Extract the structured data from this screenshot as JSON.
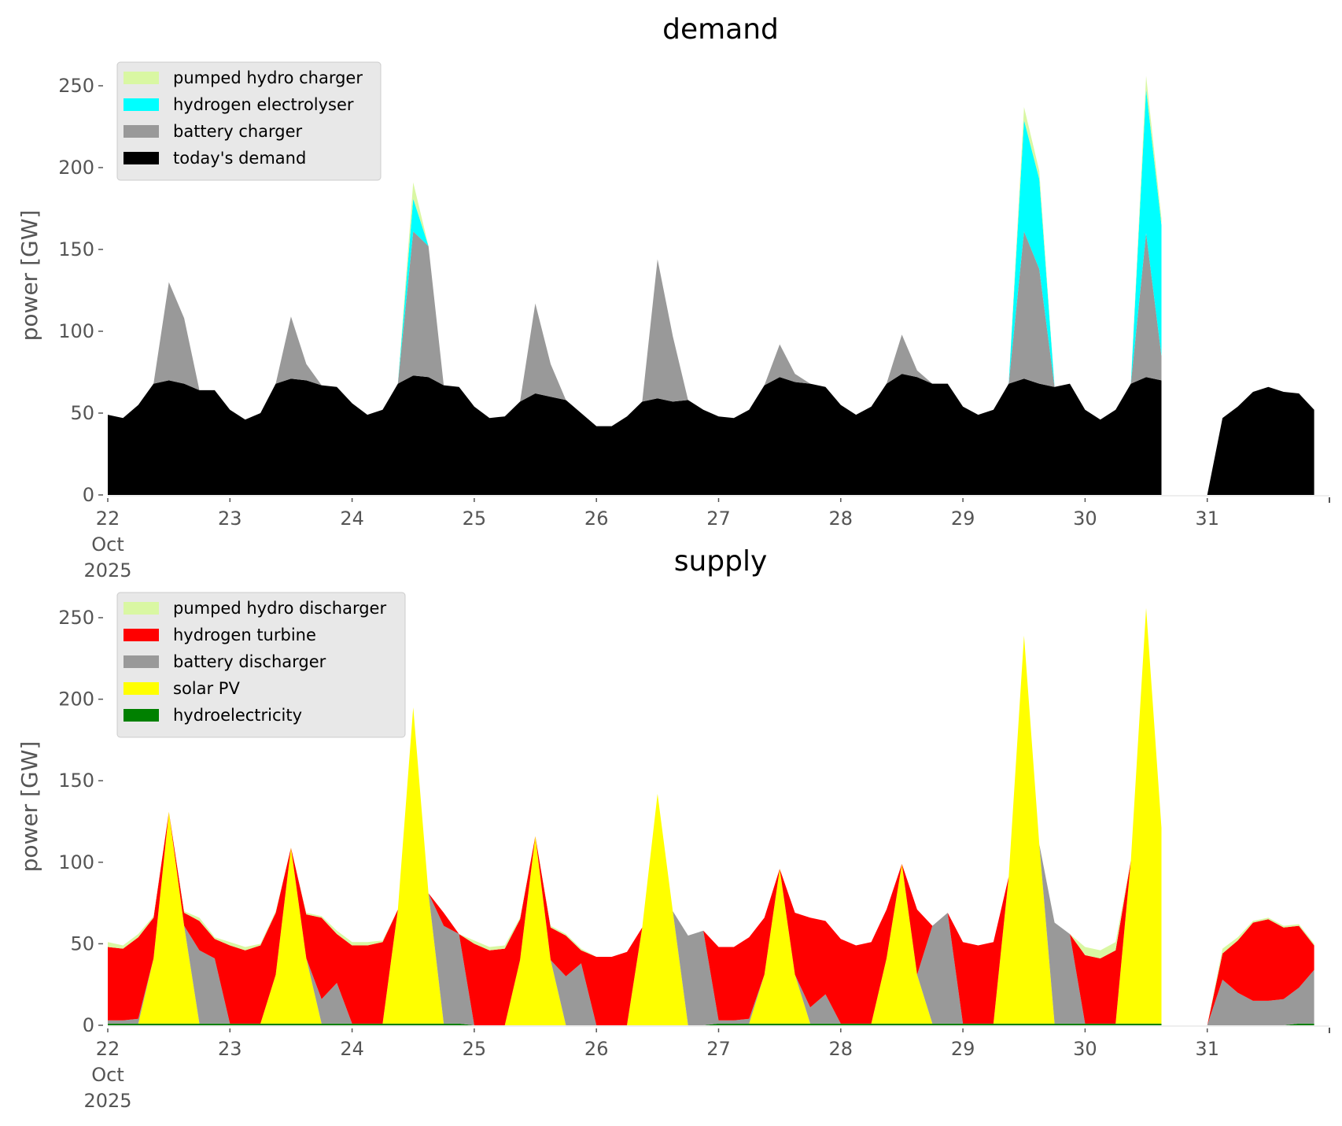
{
  "chart_data": [
    {
      "type": "area",
      "stacked": true,
      "title": "demand",
      "xlabel": "",
      "ylabel": "power [GW]",
      "ylim": [
        0,
        265
      ],
      "yticks": [
        0,
        50,
        100,
        150,
        200,
        250
      ],
      "xlim_days": [
        22,
        32
      ],
      "xticks": [
        {
          "day": 22,
          "label": "22",
          "sub": [
            "Oct",
            "2025"
          ]
        },
        {
          "day": 23,
          "label": "23"
        },
        {
          "day": 24,
          "label": "24"
        },
        {
          "day": 25,
          "label": "25"
        },
        {
          "day": 26,
          "label": "26"
        },
        {
          "day": 27,
          "label": "27"
        },
        {
          "day": 28,
          "label": "28"
        },
        {
          "day": 29,
          "label": "29"
        },
        {
          "day": 30,
          "label": "30"
        },
        {
          "day": 31,
          "label": "31"
        }
      ],
      "grid": false,
      "legend_position": "top-left",
      "sample_step_hours": 3,
      "x_start_day": 22,
      "gaps": [
        [
          26.04,
          26.08
        ],
        [
          26.9,
          26.96
        ],
        [
          30.72,
          30.96
        ]
      ],
      "series": [
        {
          "name": "today's demand",
          "color": "#000000",
          "values": [
            49,
            47,
            55,
            68,
            70,
            68,
            64,
            64,
            52,
            46,
            50,
            68,
            71,
            70,
            67,
            66,
            56,
            49,
            52,
            68,
            73,
            72,
            67,
            66,
            54,
            47,
            48,
            57,
            62,
            60,
            58,
            50,
            42,
            42,
            48,
            57,
            59,
            57,
            58,
            52,
            48,
            47,
            52,
            67,
            72,
            69,
            68,
            66,
            55,
            49,
            54,
            68,
            74,
            72,
            68,
            68,
            54,
            49,
            52,
            68,
            71,
            68,
            66,
            68,
            52,
            46,
            52,
            68,
            72,
            70,
            0,
            0,
            0,
            47,
            54,
            63,
            66,
            63,
            62,
            52
          ]
        },
        {
          "name": "battery charger",
          "color": "#999999",
          "values": [
            0,
            0,
            0,
            0,
            60,
            40,
            0,
            0,
            0,
            0,
            0,
            0,
            38,
            10,
            0,
            0,
            0,
            0,
            0,
            0,
            88,
            80,
            0,
            0,
            0,
            0,
            0,
            0,
            55,
            20,
            0,
            0,
            0,
            0,
            0,
            0,
            85,
            40,
            0,
            0,
            0,
            0,
            0,
            0,
            20,
            5,
            0,
            0,
            0,
            0,
            0,
            0,
            24,
            4,
            0,
            0,
            0,
            0,
            0,
            0,
            90,
            70,
            0,
            0,
            0,
            0,
            0,
            0,
            88,
            15,
            0,
            0,
            0,
            0,
            0,
            0,
            0,
            0,
            0,
            0
          ]
        },
        {
          "name": "hydrogen electrolyser",
          "color": "#00ffff",
          "values": [
            0,
            0,
            0,
            0,
            0,
            0,
            0,
            0,
            0,
            0,
            0,
            0,
            0,
            0,
            0,
            0,
            0,
            0,
            0,
            0,
            20,
            0,
            0,
            0,
            0,
            0,
            0,
            0,
            0,
            0,
            0,
            0,
            0,
            0,
            0,
            0,
            0,
            0,
            0,
            0,
            0,
            0,
            0,
            0,
            0,
            0,
            0,
            0,
            0,
            0,
            0,
            0,
            0,
            0,
            0,
            0,
            0,
            0,
            0,
            0,
            68,
            55,
            0,
            0,
            0,
            0,
            0,
            0,
            88,
            80,
            0,
            0,
            0,
            0,
            0,
            0,
            0,
            0,
            0,
            0
          ]
        },
        {
          "name": "pumped hydro charger",
          "color": "#d9f7a3",
          "values": [
            0,
            0,
            0,
            0,
            0,
            0,
            0,
            0,
            0,
            0,
            0,
            0,
            0,
            0,
            0,
            0,
            0,
            0,
            0,
            0,
            10,
            0,
            0,
            0,
            0,
            0,
            0,
            0,
            0,
            0,
            0,
            0,
            0,
            0,
            0,
            0,
            0,
            0,
            0,
            0,
            0,
            0,
            0,
            0,
            0,
            0,
            0,
            0,
            0,
            0,
            0,
            0,
            0,
            0,
            0,
            0,
            0,
            0,
            0,
            0,
            8,
            5,
            0,
            0,
            0,
            0,
            0,
            0,
            8,
            4,
            0,
            0,
            0,
            0,
            0,
            0,
            0,
            0,
            0,
            0
          ]
        }
      ]
    },
    {
      "type": "area",
      "stacked": true,
      "title": "supply",
      "xlabel": "",
      "ylabel": "power [GW]",
      "ylim": [
        0,
        265
      ],
      "yticks": [
        0,
        50,
        100,
        150,
        200,
        250
      ],
      "xlim_days": [
        22,
        32
      ],
      "xticks": [
        {
          "day": 22,
          "label": "22",
          "sub": [
            "Oct",
            "2025"
          ]
        },
        {
          "day": 23,
          "label": "23"
        },
        {
          "day": 24,
          "label": "24"
        },
        {
          "day": 25,
          "label": "25"
        },
        {
          "day": 26,
          "label": "26"
        },
        {
          "day": 27,
          "label": "27"
        },
        {
          "day": 28,
          "label": "28"
        },
        {
          "day": 29,
          "label": "29"
        },
        {
          "day": 30,
          "label": "30"
        },
        {
          "day": 31,
          "label": "31"
        }
      ],
      "grid": false,
      "legend_position": "top-left",
      "sample_step_hours": 3,
      "x_start_day": 22,
      "gaps": [
        [
          26.04,
          26.08
        ],
        [
          26.9,
          26.96
        ],
        [
          30.72,
          30.96
        ]
      ],
      "series": [
        {
          "name": "hydroelectricity",
          "color": "#008000",
          "values": [
            1,
            1,
            1,
            1,
            1,
            1,
            1,
            1,
            1,
            1,
            1,
            1,
            1,
            1,
            1,
            1,
            1,
            1,
            1,
            1,
            1,
            1,
            1,
            1,
            0,
            0,
            0,
            0,
            0,
            0,
            0,
            0,
            0,
            0,
            0,
            0,
            0,
            0,
            0,
            0,
            1,
            1,
            1,
            1,
            1,
            1,
            1,
            1,
            1,
            1,
            1,
            1,
            1,
            1,
            1,
            1,
            1,
            1,
            1,
            1,
            1,
            1,
            1,
            1,
            1,
            1,
            1,
            1,
            1,
            1,
            0,
            0,
            0,
            0,
            0,
            0,
            0,
            0,
            1,
            1
          ]
        },
        {
          "name": "solar PV",
          "color": "#ffff00",
          "values": [
            0,
            0,
            0,
            40,
            130,
            60,
            0,
            0,
            0,
            0,
            0,
            30,
            108,
            40,
            0,
            0,
            0,
            0,
            0,
            70,
            194,
            80,
            0,
            0,
            0,
            0,
            0,
            40,
            116,
            40,
            0,
            0,
            0,
            0,
            0,
            60,
            142,
            70,
            0,
            0,
            0,
            0,
            0,
            30,
            95,
            30,
            0,
            0,
            0,
            0,
            0,
            40,
            98,
            30,
            0,
            0,
            0,
            0,
            0,
            90,
            238,
            110,
            0,
            0,
            0,
            0,
            0,
            100,
            255,
            120,
            0,
            0,
            0,
            0,
            0,
            0,
            0,
            0,
            0,
            0
          ]
        },
        {
          "name": "battery discharger",
          "color": "#999999",
          "values": [
            2,
            2,
            3,
            0,
            0,
            0,
            45,
            40,
            0,
            0,
            0,
            0,
            0,
            0,
            15,
            25,
            0,
            0,
            0,
            0,
            0,
            0,
            60,
            55,
            0,
            0,
            0,
            0,
            0,
            0,
            30,
            38,
            0,
            0,
            0,
            0,
            0,
            0,
            55,
            58,
            2,
            2,
            3,
            0,
            0,
            0,
            10,
            18,
            0,
            0,
            0,
            0,
            0,
            0,
            60,
            68,
            0,
            0,
            0,
            0,
            0,
            0,
            62,
            55,
            0,
            0,
            0,
            0,
            0,
            0,
            0,
            0,
            0,
            28,
            20,
            15,
            15,
            16,
            22,
            33
          ]
        },
        {
          "name": "hydrogen turbine",
          "color": "#ff0000",
          "values": [
            45,
            44,
            50,
            25,
            0,
            8,
            18,
            12,
            48,
            45,
            48,
            38,
            0,
            27,
            50,
            30,
            48,
            48,
            50,
            0,
            0,
            0,
            8,
            0,
            50,
            46,
            47,
            25,
            0,
            20,
            25,
            8,
            42,
            42,
            45,
            0,
            0,
            0,
            0,
            0,
            45,
            45,
            50,
            35,
            0,
            38,
            55,
            45,
            52,
            48,
            50,
            30,
            0,
            40,
            0,
            0,
            50,
            48,
            50,
            0,
            0,
            0,
            0,
            0,
            42,
            40,
            45,
            0,
            0,
            0,
            0,
            0,
            0,
            16,
            32,
            48,
            50,
            44,
            38,
            15
          ]
        },
        {
          "name": "pumped hydro discharger",
          "color": "#d9f7a3",
          "values": [
            3,
            2,
            2,
            1,
            0,
            1,
            2,
            1,
            2,
            2,
            1,
            1,
            0,
            1,
            1,
            2,
            2,
            2,
            1,
            0,
            0,
            0,
            0,
            0,
            2,
            2,
            2,
            1,
            0,
            1,
            1,
            1,
            0,
            0,
            0,
            0,
            0,
            0,
            0,
            0,
            0,
            0,
            0,
            0,
            0,
            0,
            0,
            0,
            0,
            0,
            0,
            0,
            0,
            0,
            0,
            0,
            0,
            0,
            0,
            0,
            0,
            0,
            0,
            0,
            5,
            5,
            5,
            0,
            0,
            0,
            0,
            0,
            0,
            3,
            2,
            1,
            1,
            1,
            1,
            1
          ]
        }
      ]
    }
  ],
  "legends": {
    "demand": [
      "pumped hydro charger",
      "hydrogen electrolyser",
      "battery charger",
      "today's demand"
    ],
    "supply": [
      "pumped hydro discharger",
      "hydrogen turbine",
      "battery discharger",
      "solar PV",
      "hydroelectricity"
    ]
  },
  "legend_colors": {
    "demand": [
      "#d9f7a3",
      "#00ffff",
      "#999999",
      "#000000"
    ],
    "supply": [
      "#d9f7a3",
      "#ff0000",
      "#999999",
      "#ffff00",
      "#008000"
    ]
  }
}
